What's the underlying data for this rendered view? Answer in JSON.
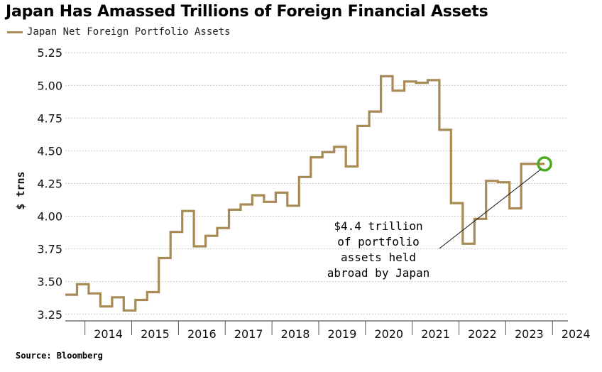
{
  "header": {
    "title": "Japan Has Amassed Trillions of Foreign Financial Assets",
    "source": "Source: Bloomberg"
  },
  "chart_data": {
    "type": "line",
    "step": true,
    "title": "Japan Has Amassed Trillions of Foreign Financial Assets",
    "ylabel": "$ trns",
    "xlabel": "",
    "ylim": [
      3.2,
      5.3
    ],
    "yticks": [
      "3.25",
      "3.50",
      "3.75",
      "4.00",
      "4.25",
      "4.50",
      "4.75",
      "5.00",
      "5.25"
    ],
    "xticks": [
      "2014",
      "2015",
      "2016",
      "2017",
      "2018",
      "2019",
      "2020",
      "2021",
      "2022",
      "2023",
      "2024"
    ],
    "xlim": [
      2013.58,
      2024.33
    ],
    "grid": true,
    "legend_position": "top-left",
    "series": [
      {
        "name": "Japan Net Foreign Portfolio Assets",
        "color": "#a78a55",
        "x": [
          2013.58,
          2013.83,
          2014.08,
          2014.33,
          2014.58,
          2014.83,
          2015.08,
          2015.33,
          2015.58,
          2015.83,
          2016.08,
          2016.33,
          2016.58,
          2016.83,
          2017.08,
          2017.33,
          2017.58,
          2017.83,
          2018.08,
          2018.33,
          2018.58,
          2018.83,
          2019.08,
          2019.33,
          2019.58,
          2019.83,
          2020.08,
          2020.33,
          2020.58,
          2020.83,
          2021.08,
          2021.33,
          2021.58,
          2021.83,
          2022.08,
          2022.33,
          2022.58,
          2022.83,
          2023.08,
          2023.33,
          2023.58,
          2023.83
        ],
        "y": [
          3.4,
          3.48,
          3.41,
          3.31,
          3.38,
          3.28,
          3.36,
          3.42,
          3.68,
          3.88,
          4.04,
          3.77,
          3.85,
          3.91,
          4.05,
          4.09,
          4.16,
          4.11,
          4.18,
          4.08,
          4.3,
          4.45,
          4.49,
          4.53,
          4.38,
          4.69,
          4.8,
          5.07,
          4.96,
          5.03,
          5.02,
          5.04,
          4.66,
          4.1,
          3.79,
          3.98,
          4.27,
          4.26,
          4.06,
          4.4,
          4.4,
          4.4
        ]
      }
    ],
    "marker": {
      "x": 2023.83,
      "y": 4.4,
      "color": "#4cab1e",
      "shape": "circle"
    },
    "annotation": {
      "lines": [
        "$4.4 trillion",
        "of portfolio",
        "assets held",
        "abroad by Japan"
      ],
      "points_to": {
        "x": 2023.75,
        "y": 4.38
      }
    }
  }
}
